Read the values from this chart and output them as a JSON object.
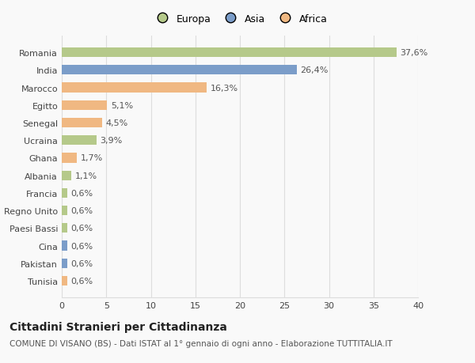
{
  "categories": [
    "Romania",
    "India",
    "Marocco",
    "Egitto",
    "Senegal",
    "Ucraina",
    "Ghana",
    "Albania",
    "Francia",
    "Regno Unito",
    "Paesi Bassi",
    "Cina",
    "Pakistan",
    "Tunisia"
  ],
  "values": [
    37.6,
    26.4,
    16.3,
    5.1,
    4.5,
    3.9,
    1.7,
    1.1,
    0.6,
    0.6,
    0.6,
    0.6,
    0.6,
    0.6
  ],
  "labels": [
    "37,6%",
    "26,4%",
    "16,3%",
    "5,1%",
    "4,5%",
    "3,9%",
    "1,7%",
    "1,1%",
    "0,6%",
    "0,6%",
    "0,6%",
    "0,6%",
    "0,6%",
    "0,6%"
  ],
  "colors": [
    "#b5c98a",
    "#7b9dc9",
    "#f0b882",
    "#f0b882",
    "#f0b882",
    "#b5c98a",
    "#f0b882",
    "#b5c98a",
    "#b5c98a",
    "#b5c98a",
    "#b5c98a",
    "#7b9dc9",
    "#7b9dc9",
    "#f0b882"
  ],
  "legend_labels": [
    "Europa",
    "Asia",
    "Africa"
  ],
  "legend_colors": [
    "#b5c98a",
    "#7b9dc9",
    "#f0b882"
  ],
  "title": "Cittadini Stranieri per Cittadinanza",
  "subtitle": "COMUNE DI VISANO (BS) - Dati ISTAT al 1° gennaio di ogni anno - Elaborazione TUTTITALIA.IT",
  "xlim": [
    0,
    40
  ],
  "xticks": [
    0,
    5,
    10,
    15,
    20,
    25,
    30,
    35,
    40
  ],
  "background_color": "#f9f9f9",
  "grid_color": "#dddddd",
  "bar_height": 0.55,
  "title_fontsize": 10,
  "subtitle_fontsize": 7.5,
  "tick_fontsize": 8,
  "label_fontsize": 8,
  "legend_fontsize": 9
}
